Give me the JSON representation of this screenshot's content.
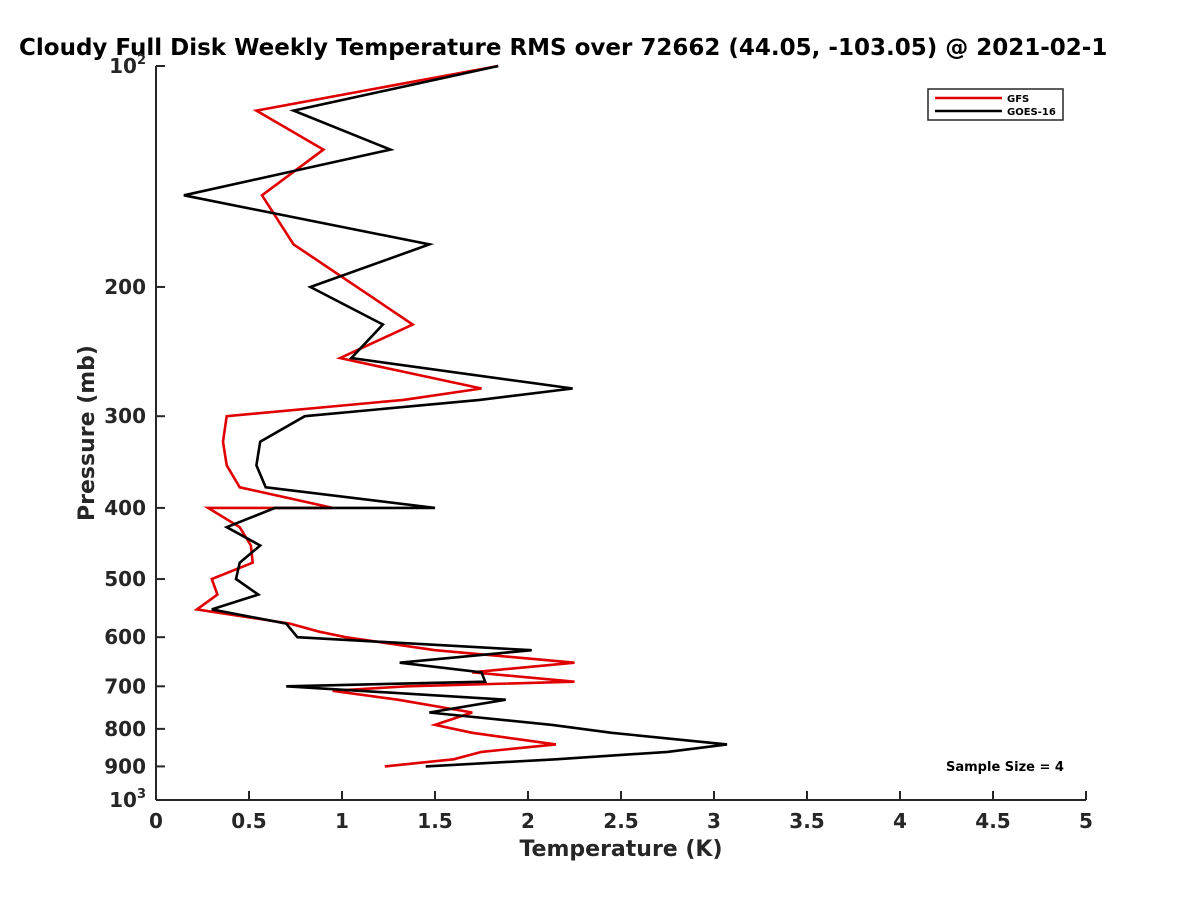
{
  "chart_data": {
    "type": "line",
    "title": "Cloudy Full Disk Weekly Temperature RMS over 72662 (44.05, -103.05) @ 2021-02-1",
    "xlabel": "Temperature (K)",
    "ylabel": "Pressure (mb)",
    "xlim": [
      0,
      5
    ],
    "ylim": [
      100,
      1000
    ],
    "y_scale": "log",
    "y_reversed": true,
    "grid": false,
    "legend_position": "top-right",
    "x_ticks": [
      0,
      0.5,
      1,
      1.5,
      2,
      2.5,
      3,
      3.5,
      4,
      4.5,
      5
    ],
    "x_tick_labels": [
      "0",
      "0.5",
      "1",
      "1.5",
      "2",
      "2.5",
      "3",
      "3.5",
      "4",
      "4.5",
      "5"
    ],
    "y_ticks": [
      100,
      200,
      300,
      400,
      500,
      600,
      700,
      800,
      900,
      1000
    ],
    "y_tick_labels": [
      {
        "base": "10",
        "exp": "2"
      },
      {
        "base": "200",
        "exp": ""
      },
      {
        "base": "300",
        "exp": ""
      },
      {
        "base": "400",
        "exp": ""
      },
      {
        "base": "500",
        "exp": ""
      },
      {
        "base": "600",
        "exp": ""
      },
      {
        "base": "700",
        "exp": ""
      },
      {
        "base": "800",
        "exp": ""
      },
      {
        "base": "900",
        "exp": ""
      },
      {
        "base": "10",
        "exp": "3"
      }
    ],
    "annotation": "Sample Size = 4",
    "series": [
      {
        "name": "GFS",
        "color": "#e00000",
        "points": [
          [
            1.84,
            100
          ],
          [
            0.54,
            115
          ],
          [
            0.9,
            130
          ],
          [
            0.57,
            150
          ],
          [
            0.74,
            175
          ],
          [
            1.38,
            225
          ],
          [
            0.99,
            250
          ],
          [
            1.75,
            275
          ],
          [
            1.33,
            285
          ],
          [
            0.38,
            300
          ],
          [
            0.36,
            325
          ],
          [
            0.38,
            350
          ],
          [
            0.45,
            375
          ],
          [
            0.95,
            400
          ],
          [
            0.28,
            400
          ],
          [
            0.45,
            425
          ],
          [
            0.51,
            450
          ],
          [
            0.52,
            475
          ],
          [
            0.3,
            500
          ],
          [
            0.33,
            525
          ],
          [
            0.22,
            550
          ],
          [
            0.72,
            575
          ],
          [
            0.88,
            590
          ],
          [
            1.02,
            600
          ],
          [
            1.5,
            625
          ],
          [
            2.25,
            650
          ],
          [
            1.7,
            670
          ],
          [
            2.25,
            690
          ],
          [
            1.35,
            700
          ],
          [
            0.95,
            710
          ],
          [
            1.3,
            730
          ],
          [
            1.7,
            760
          ],
          [
            1.5,
            790
          ],
          [
            1.7,
            810
          ],
          [
            2.15,
            840
          ],
          [
            1.75,
            860
          ],
          [
            1.6,
            880
          ],
          [
            1.23,
            900
          ]
        ]
      },
      {
        "name": "GOES-16",
        "color": "#000000",
        "points": [
          [
            1.84,
            100
          ],
          [
            0.74,
            115
          ],
          [
            1.26,
            130
          ],
          [
            0.15,
            150
          ],
          [
            1.47,
            175
          ],
          [
            0.83,
            200
          ],
          [
            1.22,
            225
          ],
          [
            1.05,
            250
          ],
          [
            2.24,
            275
          ],
          [
            1.74,
            285
          ],
          [
            0.8,
            300
          ],
          [
            0.56,
            325
          ],
          [
            0.54,
            350
          ],
          [
            0.59,
            375
          ],
          [
            1.5,
            400
          ],
          [
            0.64,
            400
          ],
          [
            0.38,
            425
          ],
          [
            0.56,
            450
          ],
          [
            0.45,
            475
          ],
          [
            0.43,
            500
          ],
          [
            0.55,
            525
          ],
          [
            0.3,
            550
          ],
          [
            0.7,
            575
          ],
          [
            0.76,
            600
          ],
          [
            2.02,
            625
          ],
          [
            1.31,
            650
          ],
          [
            1.75,
            670
          ],
          [
            1.77,
            690
          ],
          [
            0.7,
            700
          ],
          [
            1.88,
            730
          ],
          [
            1.47,
            760
          ],
          [
            2.13,
            790
          ],
          [
            2.45,
            810
          ],
          [
            3.07,
            840
          ],
          [
            2.75,
            860
          ],
          [
            2.15,
            880
          ],
          [
            1.45,
            900
          ]
        ]
      }
    ]
  }
}
